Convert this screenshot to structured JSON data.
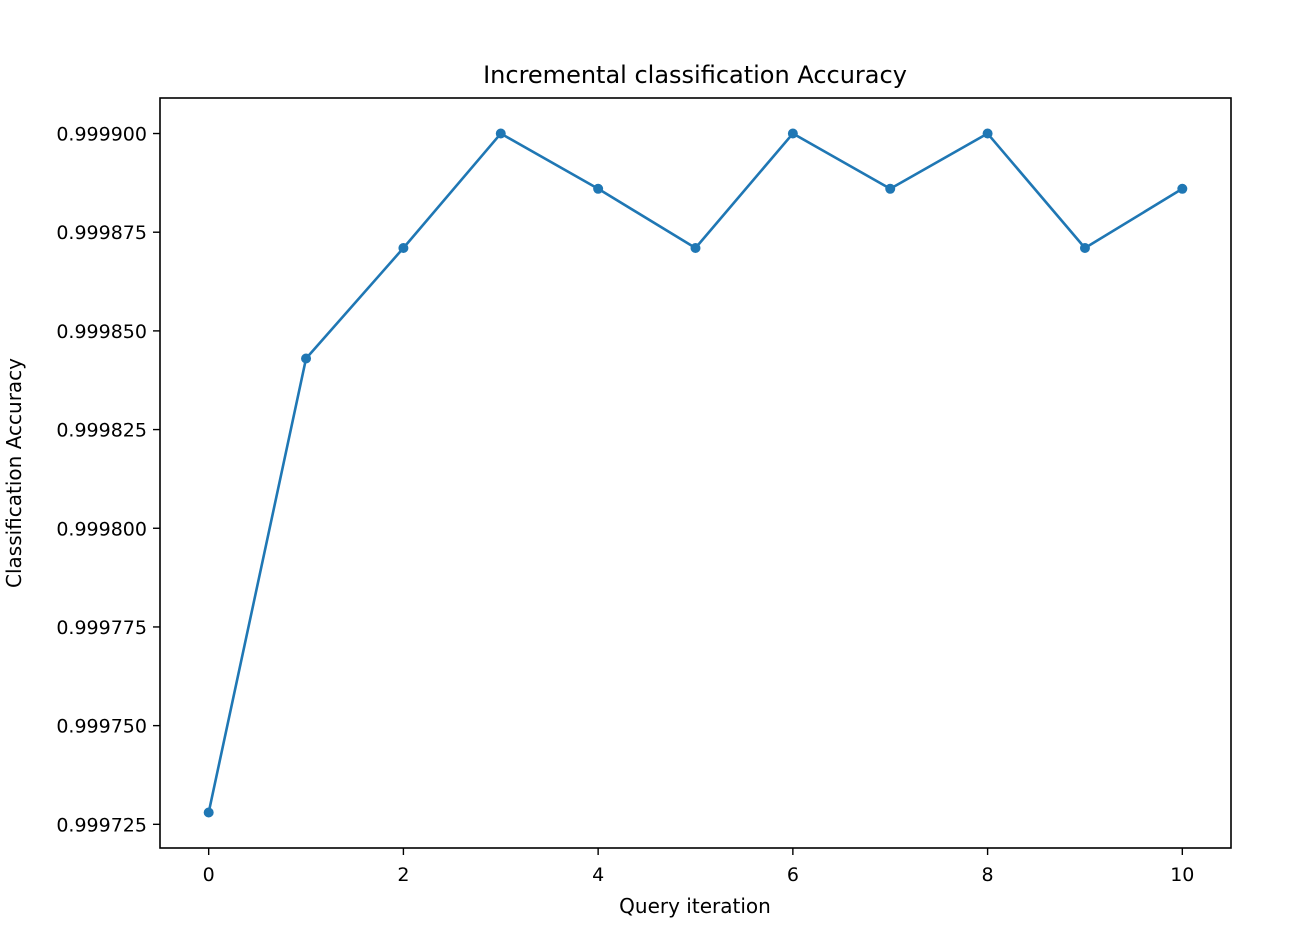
{
  "chart_data": {
    "type": "line",
    "title": "Incremental classification Accuracy",
    "xlabel": "Query iteration",
    "ylabel": "Classification Accuracy",
    "x": [
      0,
      1,
      2,
      3,
      4,
      5,
      6,
      7,
      8,
      9,
      10
    ],
    "series": [
      {
        "name": "",
        "color": "#1f77b4",
        "marker": "circle",
        "values": [
          0.999728,
          0.999843,
          0.999871,
          0.9999,
          0.999886,
          0.999871,
          0.9999,
          0.999886,
          0.9999,
          0.999871,
          0.999886
        ]
      }
    ],
    "xlim": [
      -0.5,
      10.5
    ],
    "ylim": [
      0.999719,
      0.999909
    ],
    "xticks": [
      0,
      2,
      4,
      6,
      8,
      10
    ],
    "xtick_labels": [
      "0",
      "2",
      "4",
      "6",
      "8",
      "10"
    ],
    "yticks": [
      0.999725,
      0.99975,
      0.999775,
      0.9998,
      0.999825,
      0.99985,
      0.999875,
      0.9999
    ],
    "ytick_labels": [
      "0.999725",
      "0.999750",
      "0.999775",
      "0.999800",
      "0.999825",
      "0.999850",
      "0.999875",
      "0.999900"
    ],
    "grid": false,
    "legend": "none"
  }
}
